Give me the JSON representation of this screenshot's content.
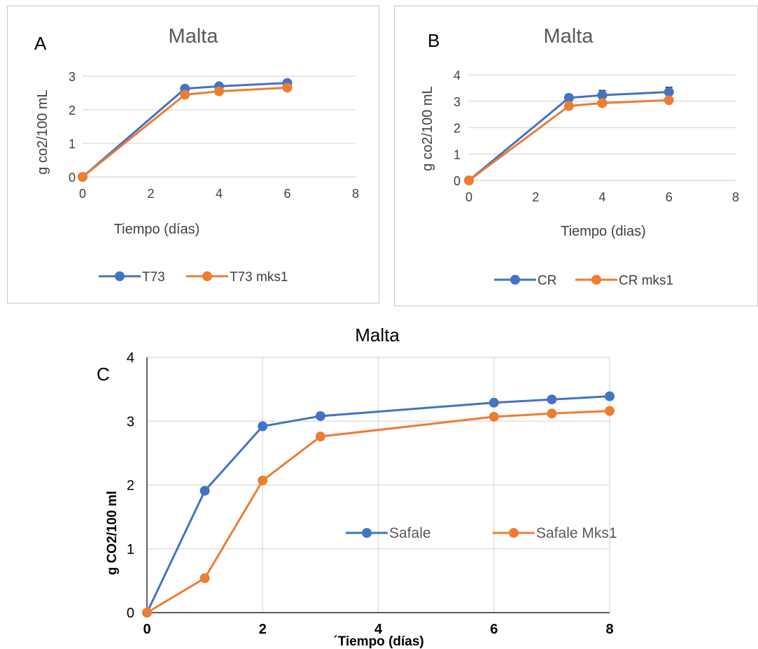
{
  "colors": {
    "series1": "#4472c4",
    "series2": "#ed7d31",
    "grid": "#d9d9d9"
  },
  "chart_data": [
    {
      "id": "A",
      "type": "line",
      "panel_letter": "A",
      "title": "Malta",
      "xlabel": "Tiempo (días)",
      "ylabel": "g co2/100 mL",
      "xlim": [
        0,
        8
      ],
      "ylim": [
        0,
        3
      ],
      "xticks": [
        "0",
        "2",
        "4",
        "6",
        "8"
      ],
      "yticks": [
        "0",
        "1",
        "2",
        "3"
      ],
      "grid": "horizontal",
      "legend_position": "bottom",
      "x": [
        0,
        3,
        4,
        6
      ],
      "series": [
        {
          "name": "T73",
          "values": [
            0,
            2.63,
            2.7,
            2.8
          ]
        },
        {
          "name": "T73 mks1",
          "values": [
            0,
            2.45,
            2.55,
            2.66
          ]
        }
      ]
    },
    {
      "id": "B",
      "type": "line",
      "panel_letter": "B",
      "title": "Malta",
      "xlabel": "Tiempo (dias)",
      "ylabel": "g co2/100 mL",
      "xlim": [
        0,
        8
      ],
      "ylim": [
        0,
        4
      ],
      "xticks": [
        "0",
        "2",
        "4",
        "6",
        "8"
      ],
      "yticks": [
        "0",
        "1",
        "2",
        "3",
        "4"
      ],
      "grid": "horizontal",
      "legend_position": "bottom",
      "x": [
        0,
        3,
        4,
        6
      ],
      "series": [
        {
          "name": "CR",
          "values": [
            0,
            3.13,
            3.23,
            3.35
          ],
          "error": [
            0,
            0.12,
            0.18,
            0.18
          ]
        },
        {
          "name": "CR mks1",
          "values": [
            0,
            2.82,
            2.93,
            3.04
          ]
        }
      ]
    },
    {
      "id": "C",
      "type": "line",
      "panel_letter": "C",
      "title": "Malta",
      "xlabel": "´Tiempo (días)",
      "ylabel": "g CO2/100 ml",
      "xlim": [
        0,
        8
      ],
      "ylim": [
        0,
        4
      ],
      "xticks": [
        "0",
        "2",
        "4",
        "6",
        "8"
      ],
      "yticks": [
        "0",
        "1",
        "2",
        "3",
        "4"
      ],
      "grid": "both",
      "legend_position": "inside-right",
      "x": [
        0,
        1,
        2,
        3,
        6,
        7,
        8
      ],
      "series": [
        {
          "name": "Safale",
          "values": [
            0,
            1.91,
            2.92,
            3.08,
            3.29,
            3.34,
            3.39
          ]
        },
        {
          "name": "Safale Mks1",
          "values": [
            0,
            0.54,
            2.07,
            2.76,
            3.07,
            3.12,
            3.16
          ]
        }
      ]
    }
  ]
}
